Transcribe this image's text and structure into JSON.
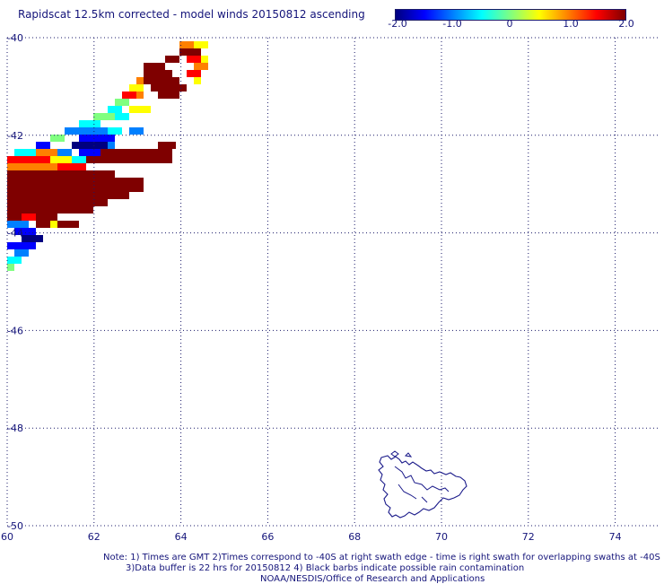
{
  "title": "Rapidscat 12.5km corrected - model winds 20150812 ascending",
  "colorbar": {
    "ticks": [
      "-2.0",
      "-1.0",
      "0",
      "1.0",
      "2.0"
    ],
    "tick_values": [
      -2.0,
      -1.0,
      0,
      1.0,
      2.0
    ],
    "range": [
      -2.0,
      2.0
    ],
    "colors": [
      "#00007f",
      "#0000ff",
      "#0080ff",
      "#00ffff",
      "#80ff80",
      "#ffff00",
      "#ff8000",
      "#ff0000",
      "#7f0000"
    ]
  },
  "map": {
    "lon_range": [
      60,
      75
    ],
    "lat_range": [
      -50,
      -40
    ],
    "lon_ticks": [
      "60",
      "62",
      "64",
      "66",
      "68",
      "70",
      "72",
      "74"
    ],
    "lon_tick_values": [
      60,
      62,
      64,
      66,
      68,
      70,
      72,
      74
    ],
    "lat_ticks": [
      "-40",
      "-42",
      "-44",
      "-46",
      "-48",
      "-50"
    ],
    "lat_tick_values": [
      -40,
      -42,
      -44,
      -46,
      -48,
      -50
    ],
    "grid": "dotted",
    "land_label": "Kerguelen Islands outline"
  },
  "notes": {
    "line1": "Note: 1) Times are GMT 2)Times correspond to -40S at right swath edge - time is right swath for overlapping swaths at -40S",
    "line2": "3)Data buffer is 22 hrs for 20150812 4) Black barbs indicate possible rain contamination",
    "line3": "NOAA/NESDIS/Office of Research and Applications"
  }
}
